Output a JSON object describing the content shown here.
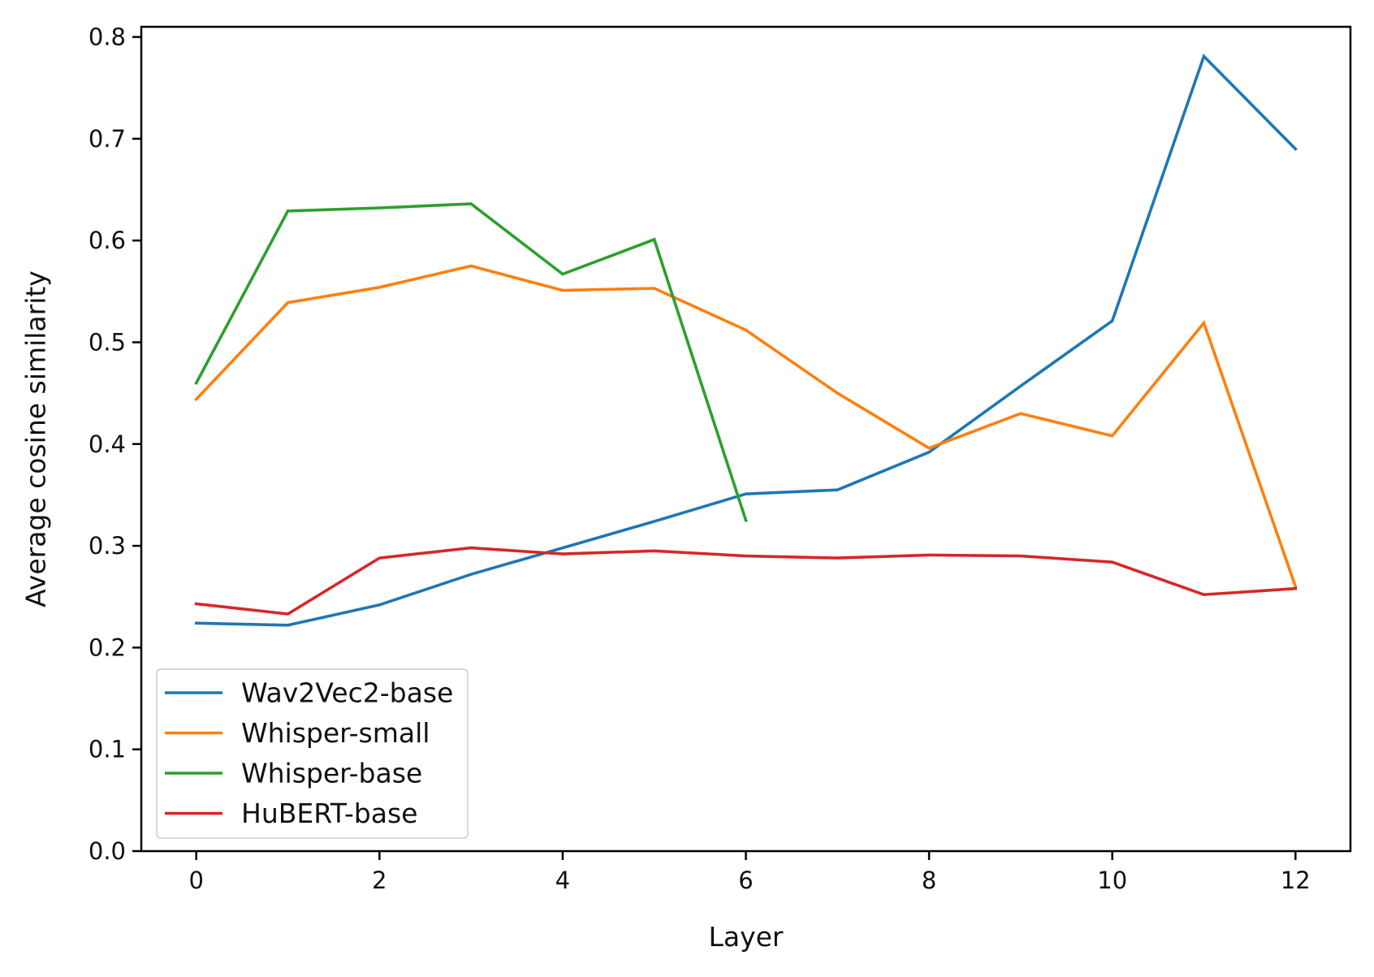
{
  "chart_data": {
    "type": "line",
    "title": "",
    "xlabel": "Layer",
    "ylabel": "Average cosine similarity",
    "xlim": [
      -0.6,
      12.6
    ],
    "ylim": [
      0.0,
      0.81
    ],
    "xticks": [
      0,
      2,
      4,
      6,
      8,
      10,
      12
    ],
    "yticks": [
      0.0,
      0.1,
      0.2,
      0.3,
      0.4,
      0.5,
      0.6,
      0.7,
      0.8
    ],
    "xtick_labels": [
      "0",
      "2",
      "4",
      "6",
      "8",
      "10",
      "12"
    ],
    "ytick_labels": [
      "0.0",
      "0.1",
      "0.2",
      "0.3",
      "0.4",
      "0.5",
      "0.6",
      "0.7",
      "0.8"
    ],
    "grid": false,
    "legend_position": "lower-left",
    "series": [
      {
        "name": "Wav2Vec2-base",
        "color": "#1f77b4",
        "x": [
          0,
          1,
          2,
          3,
          4,
          5,
          6,
          7,
          8,
          9,
          10,
          11,
          12
        ],
        "values": [
          0.224,
          0.222,
          0.242,
          0.272,
          0.298,
          0.324,
          0.351,
          0.355,
          0.392,
          0.457,
          0.521,
          0.781,
          0.69
        ]
      },
      {
        "name": "Whisper-small",
        "color": "#ff7f0e",
        "x": [
          0,
          1,
          2,
          3,
          4,
          5,
          6,
          7,
          8,
          9,
          10,
          11,
          12
        ],
        "values": [
          0.444,
          0.539,
          0.554,
          0.575,
          0.551,
          0.553,
          0.512,
          0.45,
          0.396,
          0.43,
          0.408,
          0.519,
          0.26
        ]
      },
      {
        "name": "Whisper-base",
        "color": "#2ca02c",
        "x": [
          0,
          1,
          2,
          3,
          4,
          5,
          6
        ],
        "values": [
          0.46,
          0.629,
          0.632,
          0.636,
          0.567,
          0.601,
          0.325
        ]
      },
      {
        "name": "HuBERT-base",
        "color": "#d62728",
        "x": [
          0,
          1,
          2,
          3,
          4,
          5,
          6,
          7,
          8,
          9,
          10,
          11,
          12
        ],
        "values": [
          0.243,
          0.233,
          0.288,
          0.298,
          0.292,
          0.295,
          0.29,
          0.288,
          0.291,
          0.29,
          0.284,
          0.252,
          0.258
        ]
      }
    ]
  }
}
